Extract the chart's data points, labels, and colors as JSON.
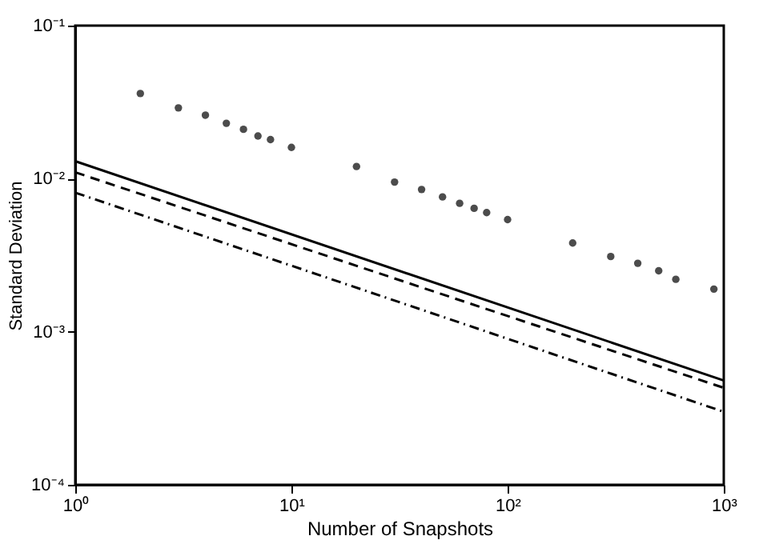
{
  "chart_data": {
    "type": "line",
    "xlabel": "Number of Snapshots",
    "ylabel": "Standard Deviation",
    "log": "xy",
    "grid": false,
    "xlim": [
      1,
      1000
    ],
    "ylim": [
      0.0001,
      0.1
    ],
    "xticks": [
      {
        "value": 1,
        "label": "10⁰"
      },
      {
        "value": 10,
        "label": "10¹"
      },
      {
        "value": 100,
        "label": "10²"
      },
      {
        "value": 1000,
        "label": "10³"
      }
    ],
    "yticks": [
      {
        "value": 0.0001,
        "label": "10⁻⁴"
      },
      {
        "value": 0.001,
        "label": "10⁻³"
      },
      {
        "value": 0.01,
        "label": "10⁻²"
      },
      {
        "value": 0.1,
        "label": "10⁻¹"
      }
    ],
    "series": [
      {
        "line_style": "solid",
        "color": "#000000",
        "x": [
          1,
          1000
        ],
        "values": [
          0.013,
          0.00048
        ]
      },
      {
        "line_style": "dashed",
        "color": "#000000",
        "x": [
          1,
          1000
        ],
        "values": [
          0.011,
          0.00043
        ]
      },
      {
        "line_style": "dashdot",
        "color": "#000000",
        "x": [
          1,
          1000
        ],
        "values": [
          0.0081,
          0.0003
        ]
      },
      {
        "type": "scatter",
        "marker": "circle",
        "color": "#000000",
        "x": [
          2,
          3,
          4,
          5,
          6,
          7,
          8,
          10,
          20,
          30,
          40,
          50,
          60,
          70,
          80,
          100,
          200,
          300,
          400,
          500,
          600,
          900
        ],
        "values": [
          0.036,
          0.029,
          0.026,
          0.023,
          0.021,
          0.019,
          0.018,
          0.016,
          0.012,
          0.0095,
          0.0085,
          0.0076,
          0.0069,
          0.0064,
          0.006,
          0.0054,
          0.0038,
          0.0031,
          0.0028,
          0.0025,
          0.0022,
          0.0019
        ]
      }
    ]
  }
}
